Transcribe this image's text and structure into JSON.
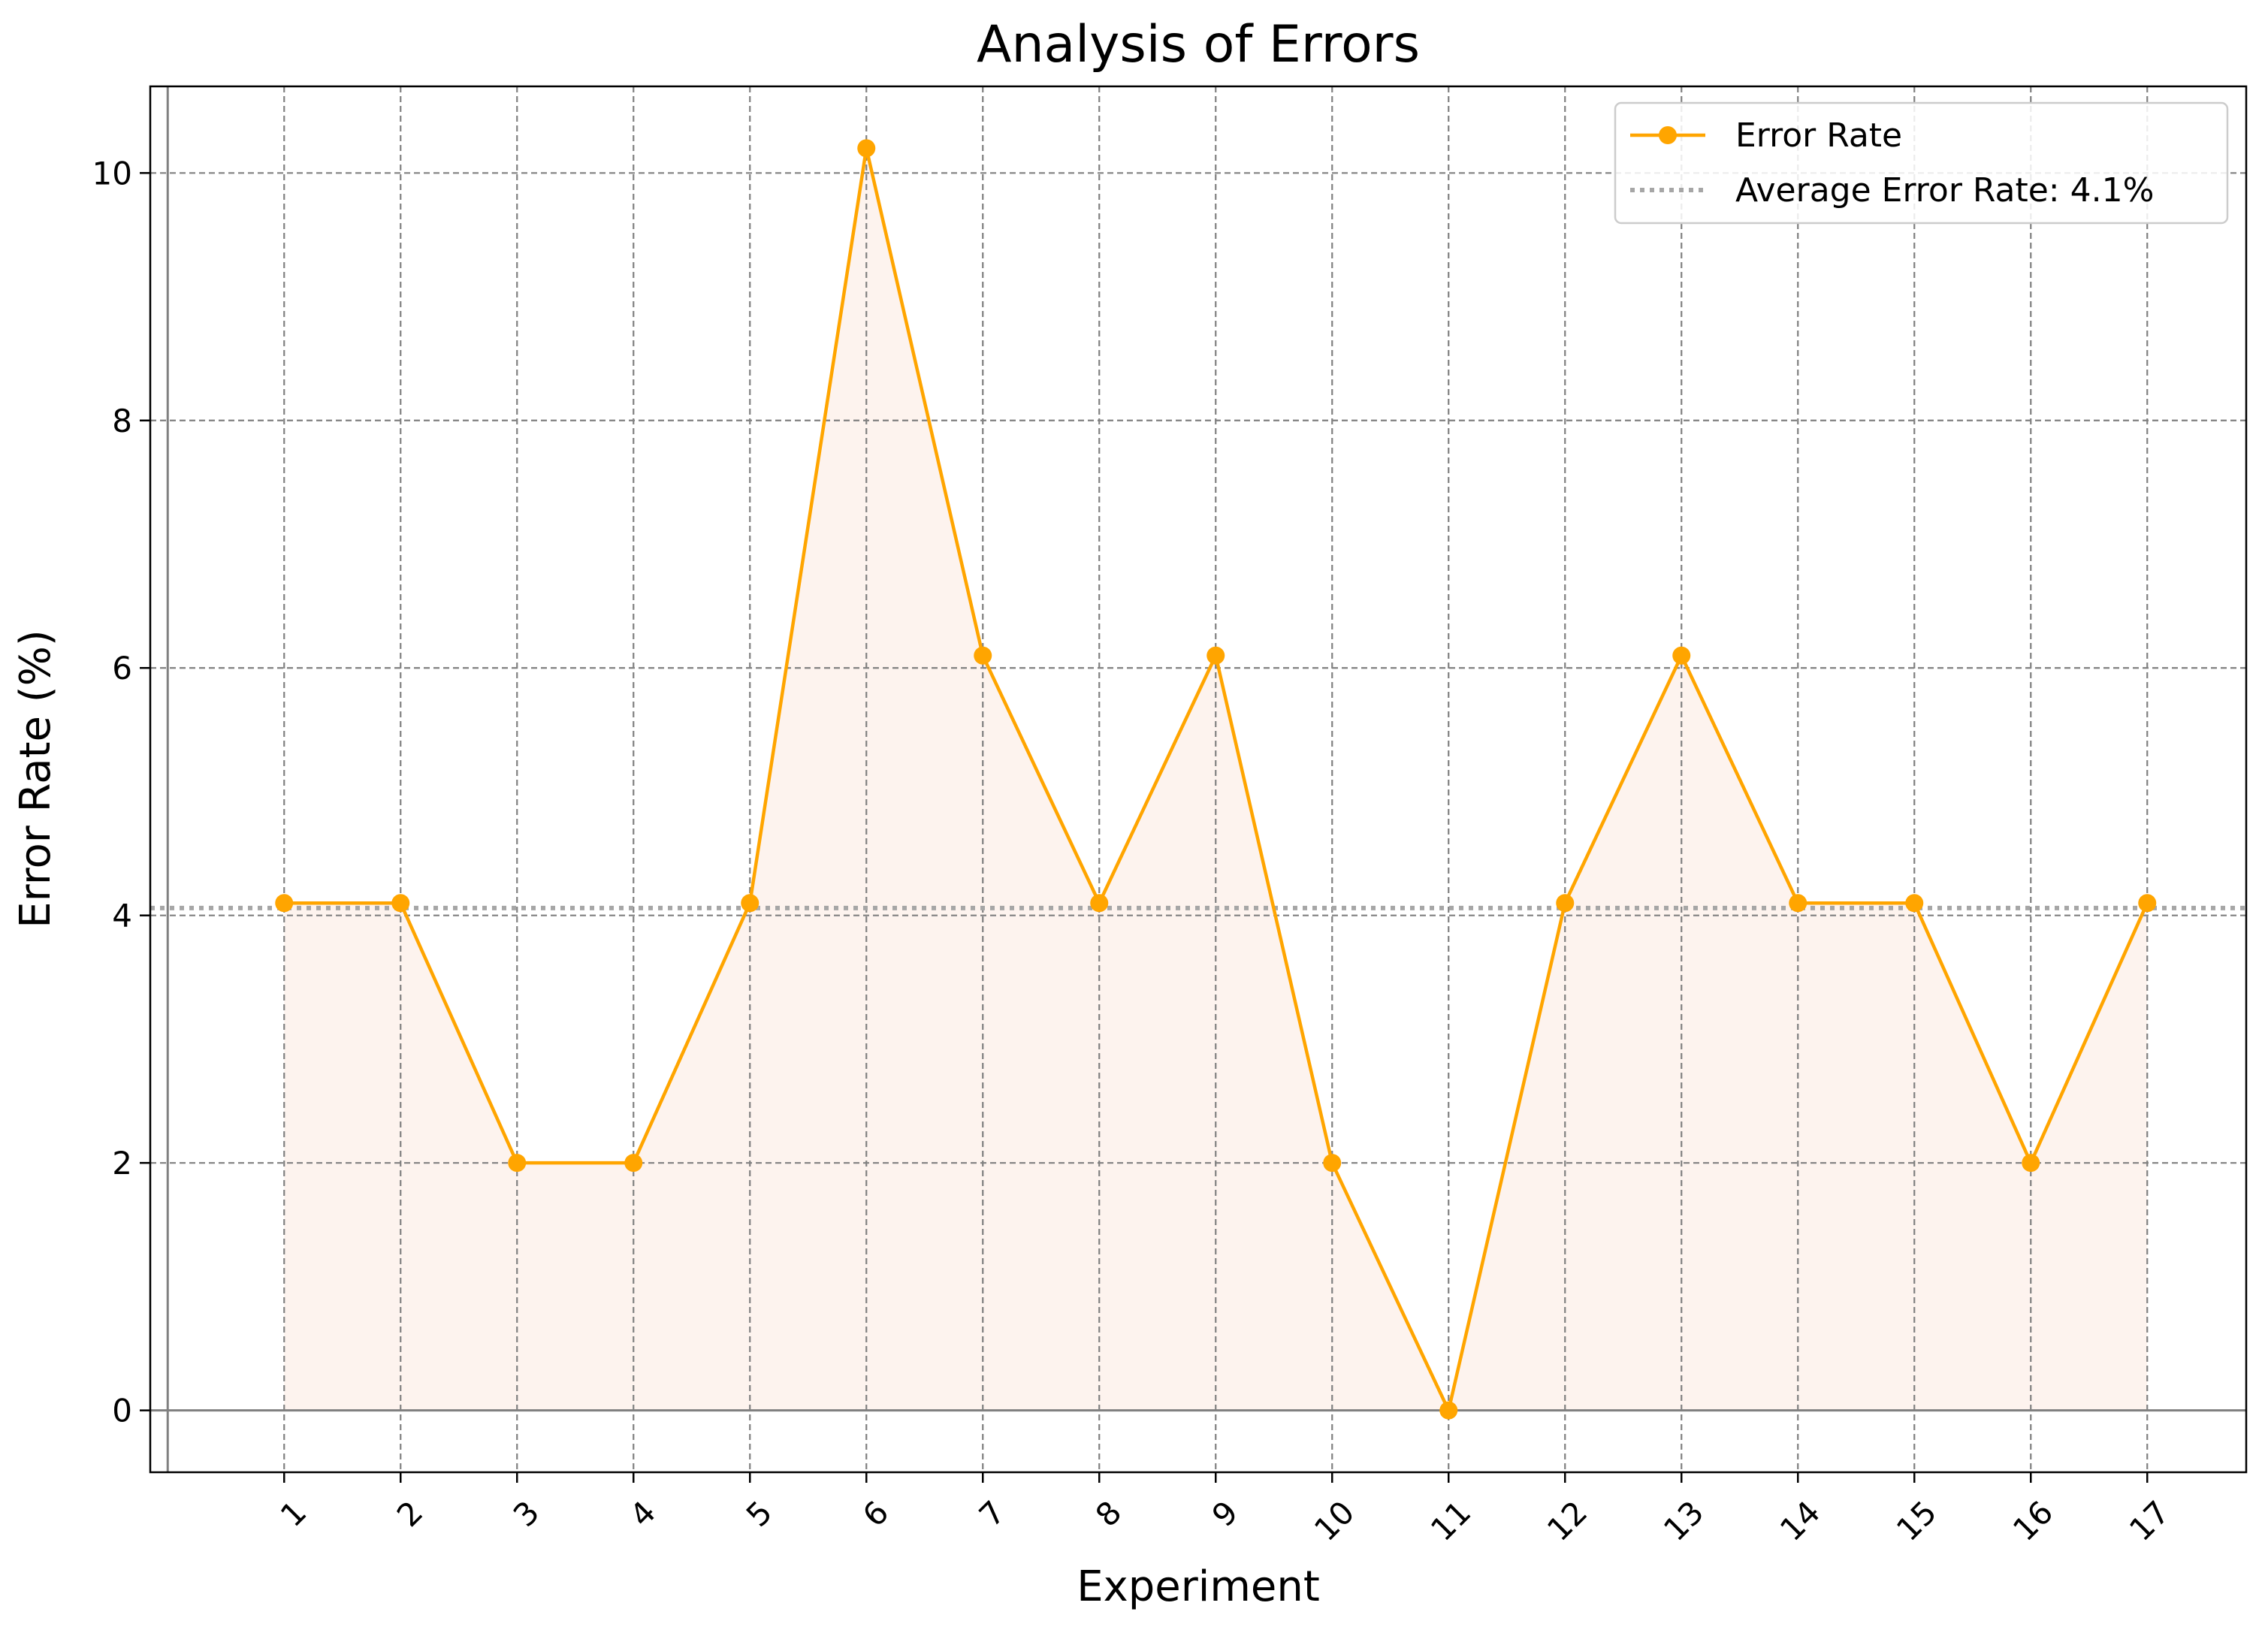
{
  "chart_data": {
    "type": "line",
    "title": "Analysis of Errors",
    "xlabel": "Experiment",
    "ylabel": "Error Rate (%)",
    "categories": [
      "1",
      "2",
      "3",
      "4",
      "5",
      "6",
      "7",
      "8",
      "9",
      "10",
      "11",
      "12",
      "13",
      "14",
      "15",
      "16",
      "17"
    ],
    "x": [
      1,
      2,
      3,
      4,
      5,
      6,
      7,
      8,
      9,
      10,
      11,
      12,
      13,
      14,
      15,
      16,
      17
    ],
    "series": [
      {
        "name": "Error Rate",
        "values": [
          4.1,
          4.1,
          2.0,
          2.0,
          4.1,
          10.2,
          6.1,
          4.1,
          6.1,
          2.0,
          0.0,
          4.1,
          6.1,
          4.1,
          4.1,
          2.0,
          4.1
        ],
        "color": "#FFA500",
        "marker": "circle",
        "fill": true,
        "fill_color": "#FDF3EE"
      }
    ],
    "reference_lines": [
      {
        "name": "Average Error Rate: 4.1%",
        "value": 4.06,
        "style": "dotted",
        "color": "#A6A6A6"
      }
    ],
    "xlim": [
      -0.15,
      17.85
    ],
    "ylim": [
      -0.5,
      10.7
    ],
    "yticks": [
      0,
      2,
      4,
      6,
      8,
      10
    ],
    "ytick_labels": [
      "0",
      "2",
      "4",
      "6",
      "8",
      "10"
    ],
    "xtick_rotation": 45,
    "grid": true,
    "grid_style": "dashed",
    "axhline_at_zero": true,
    "axvline_at_zero": true,
    "legend": "top-right"
  }
}
